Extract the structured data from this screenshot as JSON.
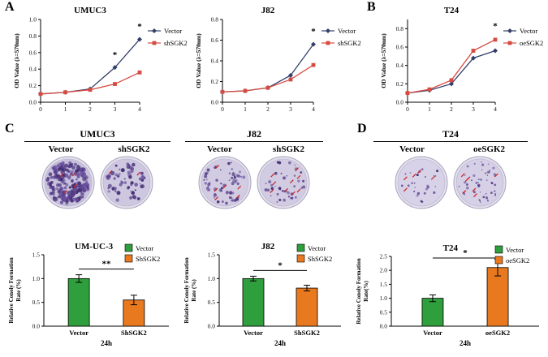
{
  "panels": {
    "A": {
      "label": "A"
    },
    "B": {
      "label": "B"
    },
    "C": {
      "label": "C",
      "groups": [
        {
          "title": "UMUC3",
          "dishes": [
            {
              "label": "Vector",
              "colonies": 210,
              "dot_min": 1.0,
              "dot_max": 3.0,
              "red_marks": 4,
              "fill": "#c8c1dc"
            },
            {
              "label": "shSGK2",
              "colonies": 60,
              "dot_min": 0.9,
              "dot_max": 2.6,
              "red_marks": 2,
              "fill": "#cdc7e0"
            }
          ]
        },
        {
          "title": "J82",
          "dishes": [
            {
              "label": "Vector",
              "colonies": 60,
              "dot_min": 0.8,
              "dot_max": 2.2,
              "red_marks": 6,
              "fill": "#d2cce3"
            },
            {
              "label": "shSGK2",
              "colonies": 40,
              "dot_min": 0.8,
              "dot_max": 2.0,
              "red_marks": 9,
              "fill": "#d2cce3"
            }
          ]
        }
      ]
    },
    "D": {
      "label": "D",
      "groups": [
        {
          "title": "T24",
          "dishes": [
            {
              "label": "Vector",
              "colonies": 26,
              "dot_min": 0.7,
              "dot_max": 1.7,
              "red_marks": 5,
              "fill": "#d7d2e7"
            },
            {
              "label": "oeSGK2",
              "colonies": 48,
              "dot_min": 0.7,
              "dot_max": 1.8,
              "red_marks": 7,
              "fill": "#d5d0e6"
            }
          ]
        }
      ]
    }
  },
  "chart_data": [
    {
      "type": "line",
      "title": "UMUC3",
      "ylabel": "OD Value (λ=570nm)",
      "xlabel": "",
      "x": [
        0,
        1,
        2,
        3,
        4
      ],
      "xlim": [
        0,
        4
      ],
      "ylim": [
        0,
        1.0
      ],
      "yticks": [
        0,
        0.2,
        0.4,
        0.6,
        0.8,
        1.0
      ],
      "series": [
        {
          "name": "Vector",
          "color": "#333f6a",
          "marker": "diamond",
          "values": [
            0.1,
            0.12,
            0.16,
            0.42,
            0.76
          ]
        },
        {
          "name": "shSGK2",
          "color": "#d64b41",
          "marker": "square",
          "values": [
            0.1,
            0.12,
            0.15,
            0.22,
            0.36
          ]
        }
      ],
      "annotations": [
        {
          "x": 3,
          "y": 0.54,
          "text": "*"
        },
        {
          "x": 4,
          "y": 0.88,
          "text": "*"
        }
      ]
    },
    {
      "type": "line",
      "title": "J82",
      "ylabel": "OD Value (λ=570nm)",
      "xlabel": "",
      "x": [
        0,
        1,
        2,
        3,
        4
      ],
      "xlim": [
        0,
        4
      ],
      "ylim": [
        0,
        0.8
      ],
      "yticks": [
        0,
        0.2,
        0.4,
        0.6,
        0.8
      ],
      "series": [
        {
          "name": "Vector",
          "color": "#333f6a",
          "marker": "diamond",
          "values": [
            0.1,
            0.11,
            0.14,
            0.26,
            0.56
          ]
        },
        {
          "name": "shSGK2",
          "color": "#d64b41",
          "marker": "square",
          "values": [
            0.1,
            0.11,
            0.14,
            0.22,
            0.36
          ]
        }
      ],
      "annotations": [
        {
          "x": 4,
          "y": 0.66,
          "text": "*"
        }
      ]
    },
    {
      "type": "line",
      "title": "T24",
      "ylabel": "OD Value (λ=570nm)",
      "xlabel": "",
      "x": [
        0,
        1,
        2,
        3,
        4
      ],
      "xlim": [
        0,
        4
      ],
      "ylim": [
        0,
        0.9
      ],
      "yticks": [
        0,
        0.2,
        0.4,
        0.6,
        0.8
      ],
      "series": [
        {
          "name": "Vector",
          "color": "#333f6a",
          "marker": "diamond",
          "values": [
            0.1,
            0.13,
            0.2,
            0.48,
            0.56
          ]
        },
        {
          "name": "oeSGK2",
          "color": "#d64b41",
          "marker": "square",
          "values": [
            0.1,
            0.14,
            0.24,
            0.56,
            0.68
          ]
        }
      ],
      "annotations": [
        {
          "x": 4,
          "y": 0.8,
          "text": "*"
        }
      ]
    },
    {
      "type": "bar",
      "title": "UM-UC-3",
      "ylabel": "Relative Conoly Formation Rate (%)",
      "xlabel": "24h",
      "categories": [
        "Vector",
        "ShSGK2"
      ],
      "values": [
        1.0,
        0.55
      ],
      "errors": [
        0.08,
        0.1
      ],
      "colors": [
        "#2f9e3c",
        "#e8791f"
      ],
      "ylim": [
        0,
        1.5
      ],
      "yticks": [
        0,
        0.5,
        1.0,
        1.5
      ],
      "significance": "**",
      "legend": [
        "Vector",
        "ShSGK2"
      ]
    },
    {
      "type": "bar",
      "title": "J82",
      "ylabel": "Relative Conoly Formation Rate (%)",
      "xlabel": "24h",
      "categories": [
        "Vector",
        "ShSGK2"
      ],
      "values": [
        1.0,
        0.8
      ],
      "errors": [
        0.05,
        0.06
      ],
      "colors": [
        "#2f9e3c",
        "#e8791f"
      ],
      "ylim": [
        0,
        1.5
      ],
      "yticks": [
        0,
        0.5,
        1.0,
        1.5
      ],
      "significance": "*",
      "legend": [
        "Vector",
        "ShSGK2"
      ]
    },
    {
      "type": "bar",
      "title": "T24",
      "ylabel": "Relative Conoly Formation Rate(%)",
      "xlabel": "24h",
      "categories": [
        "Vector",
        "oeSGK2"
      ],
      "values": [
        1.0,
        2.1
      ],
      "errors": [
        0.12,
        0.3
      ],
      "colors": [
        "#2f9e3c",
        "#e8791f"
      ],
      "ylim": [
        0,
        2.5
      ],
      "yticks": [
        0,
        0.5,
        1.0,
        1.5,
        2.0,
        2.5
      ],
      "significance": "*",
      "legend": [
        "Vector",
        "oeSGK2"
      ]
    }
  ]
}
